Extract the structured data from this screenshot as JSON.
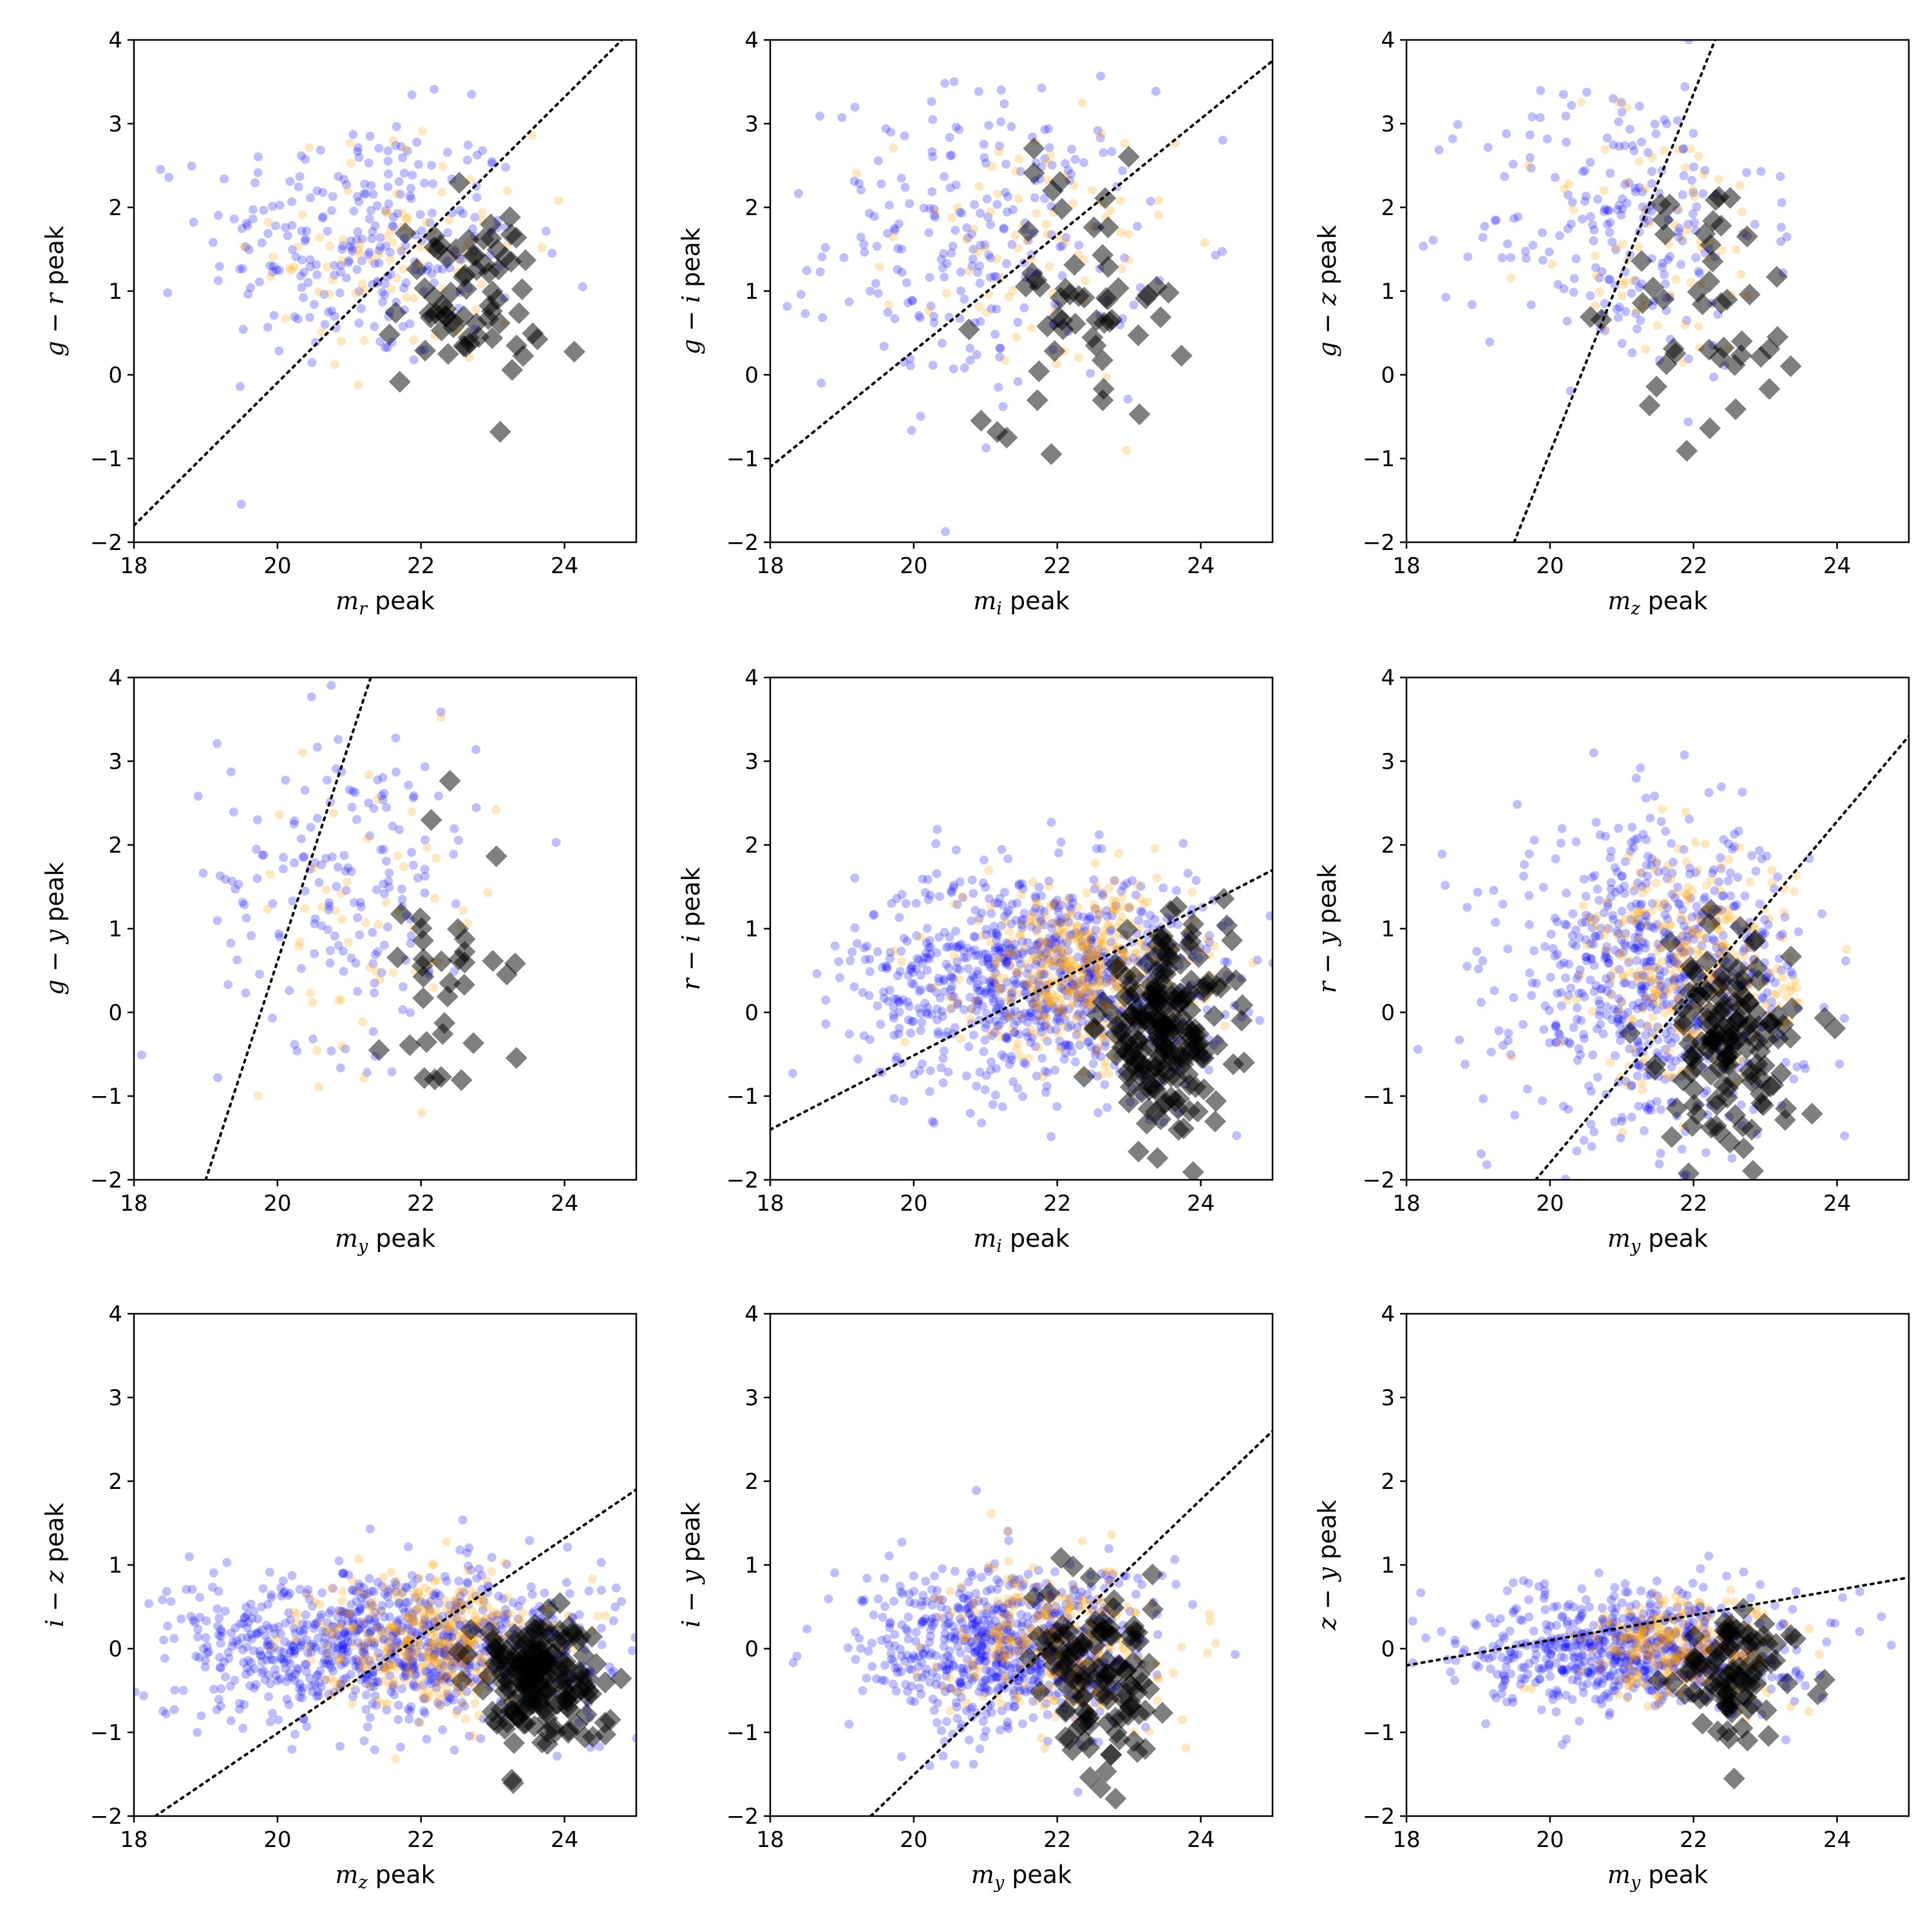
{
  "colors": {
    "blue_points": "#0000ff",
    "orange_points": "#ffa500",
    "black_diamonds": "#000000",
    "divider_line": "#000000"
  },
  "chart_data": [
    {
      "type": "scatter",
      "title": "",
      "xlabel": "m_r peak",
      "ylabel": "g − r peak",
      "xlabel_parts": {
        "symbol": "m",
        "sub": "r",
        "rest": " peak"
      },
      "ylabel_parts": {
        "a": "g",
        "b": "r",
        "rest": " peak"
      },
      "xlim": [
        18,
        25
      ],
      "ylim": [
        -2,
        4
      ],
      "xticks": [
        "18",
        "20",
        "22",
        "24"
      ],
      "yticks": [
        "−2",
        "−1",
        "0",
        "1",
        "2",
        "3",
        "4"
      ],
      "divider": {
        "x": [
          18,
          24.8
        ],
        "y": [
          -1.8,
          4.0
        ]
      },
      "series": [
        {
          "name": "blue",
          "center": [
            21.2,
            1.6
          ],
          "spread": [
            1.1,
            0.75
          ],
          "count": 260
        },
        {
          "name": "orange",
          "center": [
            21.8,
            1.5
          ],
          "spread": [
            0.9,
            0.7
          ],
          "count": 90
        },
        {
          "name": "black",
          "center": [
            22.6,
            0.9
          ],
          "spread": [
            0.55,
            0.55
          ],
          "count": 70
        }
      ]
    },
    {
      "type": "scatter",
      "title": "",
      "xlabel": "m_i peak",
      "ylabel": "g − i peak",
      "xlabel_parts": {
        "symbol": "m",
        "sub": "i",
        "rest": " peak"
      },
      "ylabel_parts": {
        "a": "g",
        "b": "i",
        "rest": " peak"
      },
      "xlim": [
        18,
        25
      ],
      "ylim": [
        -2,
        4
      ],
      "xticks": [
        "18",
        "20",
        "22",
        "24"
      ],
      "yticks": [
        "−2",
        "−1",
        "0",
        "1",
        "2",
        "3",
        "4"
      ],
      "divider": {
        "x": [
          18,
          25
        ],
        "y": [
          -1.1,
          3.75
        ]
      },
      "series": [
        {
          "name": "blue",
          "center": [
            21.0,
            1.6
          ],
          "spread": [
            1.1,
            0.9
          ],
          "count": 230
        },
        {
          "name": "orange",
          "center": [
            21.6,
            1.5
          ],
          "spread": [
            1.0,
            0.8
          ],
          "count": 80
        },
        {
          "name": "black",
          "center": [
            22.4,
            0.9
          ],
          "spread": [
            0.7,
            0.75
          ],
          "count": 55
        }
      ]
    },
    {
      "type": "scatter",
      "title": "",
      "xlabel": "m_z peak",
      "ylabel": "g − z peak",
      "xlabel_parts": {
        "symbol": "m",
        "sub": "z",
        "rest": " peak"
      },
      "ylabel_parts": {
        "a": "g",
        "b": "z",
        "rest": " peak"
      },
      "xlim": [
        18,
        25
      ],
      "ylim": [
        -2,
        4
      ],
      "xticks": [
        "18",
        "20",
        "22",
        "24"
      ],
      "yticks": [
        "−2",
        "−1",
        "0",
        "1",
        "2",
        "3",
        "4"
      ],
      "divider": {
        "x": [
          19.5,
          22.3
        ],
        "y": [
          -2.0,
          4.0
        ]
      },
      "series": [
        {
          "name": "blue",
          "center": [
            21.0,
            1.8
          ],
          "spread": [
            1.0,
            0.9
          ],
          "count": 210
        },
        {
          "name": "orange",
          "center": [
            21.5,
            1.6
          ],
          "spread": [
            0.9,
            0.8
          ],
          "count": 70
        },
        {
          "name": "black",
          "center": [
            22.3,
            0.8
          ],
          "spread": [
            0.65,
            0.8
          ],
          "count": 45
        }
      ]
    },
    {
      "type": "scatter",
      "title": "",
      "xlabel": "m_y peak",
      "ylabel": "g − y peak",
      "xlabel_parts": {
        "symbol": "m",
        "sub": "y",
        "rest": " peak"
      },
      "ylabel_parts": {
        "a": "g",
        "b": "y",
        "rest": " peak"
      },
      "xlim": [
        18,
        25
      ],
      "ylim": [
        -2,
        4
      ],
      "xticks": [
        "18",
        "20",
        "22",
        "24"
      ],
      "yticks": [
        "−2",
        "−1",
        "0",
        "1",
        "2",
        "3",
        "4"
      ],
      "divider": {
        "x": [
          19.0,
          21.3
        ],
        "y": [
          -2.0,
          4.0
        ]
      },
      "series": [
        {
          "name": "blue",
          "center": [
            21.0,
            1.6
          ],
          "spread": [
            0.9,
            1.0
          ],
          "count": 170
        },
        {
          "name": "orange",
          "center": [
            21.3,
            1.2
          ],
          "spread": [
            0.9,
            0.9
          ],
          "count": 55
        },
        {
          "name": "black",
          "center": [
            22.3,
            0.6
          ],
          "spread": [
            0.45,
            0.9
          ],
          "count": 35
        }
      ]
    },
    {
      "type": "scatter",
      "title": "",
      "xlabel": "m_i peak",
      "ylabel": "r − i peak",
      "xlabel_parts": {
        "symbol": "m",
        "sub": "i",
        "rest": " peak"
      },
      "ylabel_parts": {
        "a": "r",
        "b": "i",
        "rest": " peak"
      },
      "xlim": [
        18,
        25
      ],
      "ylim": [
        -2,
        4
      ],
      "xticks": [
        "18",
        "20",
        "22",
        "24"
      ],
      "yticks": [
        "−2",
        "−1",
        "0",
        "1",
        "2",
        "3",
        "4"
      ],
      "divider": {
        "x": [
          18,
          25
        ],
        "y": [
          -1.4,
          1.7
        ]
      },
      "series": [
        {
          "name": "blue",
          "center": [
            21.8,
            0.4
          ],
          "spread": [
            1.3,
            0.65
          ],
          "count": 900
        },
        {
          "name": "orange",
          "center": [
            22.3,
            0.5
          ],
          "spread": [
            0.8,
            0.5
          ],
          "count": 420
        },
        {
          "name": "black",
          "center": [
            23.5,
            -0.2
          ],
          "spread": [
            0.45,
            0.55
          ],
          "count": 200
        }
      ]
    },
    {
      "type": "scatter",
      "title": "",
      "xlabel": "m_y peak",
      "ylabel": "r − y peak",
      "xlabel_parts": {
        "symbol": "m",
        "sub": "y",
        "rest": " peak"
      },
      "ylabel_parts": {
        "a": "r",
        "b": "y",
        "rest": " peak"
      },
      "xlim": [
        18,
        25
      ],
      "ylim": [
        -2,
        4
      ],
      "xticks": [
        "18",
        "20",
        "22",
        "24"
      ],
      "yticks": [
        "−2",
        "−1",
        "0",
        "1",
        "2",
        "3",
        "4"
      ],
      "divider": {
        "x": [
          19.8,
          25
        ],
        "y": [
          -2.0,
          3.3
        ]
      },
      "series": [
        {
          "name": "blue",
          "center": [
            21.5,
            0.4
          ],
          "spread": [
            1.0,
            0.9
          ],
          "count": 700
        },
        {
          "name": "orange",
          "center": [
            22.0,
            0.5
          ],
          "spread": [
            0.7,
            0.7
          ],
          "count": 300
        },
        {
          "name": "black",
          "center": [
            22.5,
            -0.4
          ],
          "spread": [
            0.45,
            0.6
          ],
          "count": 140
        }
      ]
    },
    {
      "type": "scatter",
      "title": "",
      "xlabel": "m_z peak",
      "ylabel": "i − z peak",
      "xlabel_parts": {
        "symbol": "m",
        "sub": "z",
        "rest": " peak"
      },
      "ylabel_parts": {
        "a": "i",
        "b": "z",
        "rest": " peak"
      },
      "xlim": [
        18,
        25
      ],
      "ylim": [
        -2,
        4
      ],
      "xticks": [
        "18",
        "20",
        "22",
        "24"
      ],
      "yticks": [
        "−2",
        "−1",
        "0",
        "1",
        "2",
        "3",
        "4"
      ],
      "divider": {
        "x": [
          18.3,
          25
        ],
        "y": [
          -2.0,
          1.9
        ]
      },
      "series": [
        {
          "name": "blue",
          "center": [
            21.5,
            0.05
          ],
          "spread": [
            1.5,
            0.45
          ],
          "count": 900
        },
        {
          "name": "orange",
          "center": [
            22.2,
            0.1
          ],
          "spread": [
            0.8,
            0.4
          ],
          "count": 400
        },
        {
          "name": "black",
          "center": [
            23.6,
            -0.35
          ],
          "spread": [
            0.45,
            0.4
          ],
          "count": 180
        }
      ]
    },
    {
      "type": "scatter",
      "title": "",
      "xlabel": "m_y peak",
      "ylabel": "i − y peak",
      "xlabel_parts": {
        "symbol": "m",
        "sub": "y",
        "rest": " peak"
      },
      "ylabel_parts": {
        "a": "i",
        "b": "y",
        "rest": " peak"
      },
      "xlim": [
        18,
        25
      ],
      "ylim": [
        -2,
        4
      ],
      "xticks": [
        "18",
        "20",
        "22",
        "24"
      ],
      "yticks": [
        "−2",
        "−1",
        "0",
        "1",
        "2",
        "3",
        "4"
      ],
      "divider": {
        "x": [
          19.4,
          25
        ],
        "y": [
          -2.0,
          2.6
        ]
      },
      "series": [
        {
          "name": "blue",
          "center": [
            21.3,
            0.0
          ],
          "spread": [
            1.0,
            0.5
          ],
          "count": 700
        },
        {
          "name": "orange",
          "center": [
            21.9,
            0.1
          ],
          "spread": [
            0.7,
            0.45
          ],
          "count": 300
        },
        {
          "name": "black",
          "center": [
            22.6,
            -0.5
          ],
          "spread": [
            0.45,
            0.5
          ],
          "count": 120
        }
      ]
    },
    {
      "type": "scatter",
      "title": "",
      "xlabel": "m_y peak",
      "ylabel": "z − y peak",
      "xlabel_parts": {
        "symbol": "m",
        "sub": "y",
        "rest": " peak"
      },
      "ylabel_parts": {
        "a": "z",
        "b": "y",
        "rest": " peak"
      },
      "xlim": [
        18,
        25
      ],
      "ylim": [
        -2,
        4
      ],
      "xticks": [
        "18",
        "20",
        "22",
        "24"
      ],
      "yticks": [
        "−2",
        "−1",
        "0",
        "1",
        "2",
        "3",
        "4"
      ],
      "divider": {
        "x": [
          18,
          25
        ],
        "y": [
          -0.2,
          0.85
        ]
      },
      "series": [
        {
          "name": "blue",
          "center": [
            21.2,
            0.0
          ],
          "spread": [
            1.1,
            0.35
          ],
          "count": 700
        },
        {
          "name": "orange",
          "center": [
            21.9,
            0.0
          ],
          "spread": [
            0.7,
            0.3
          ],
          "count": 300
        },
        {
          "name": "black",
          "center": [
            22.6,
            -0.4
          ],
          "spread": [
            0.4,
            0.4
          ],
          "count": 90
        }
      ]
    }
  ]
}
